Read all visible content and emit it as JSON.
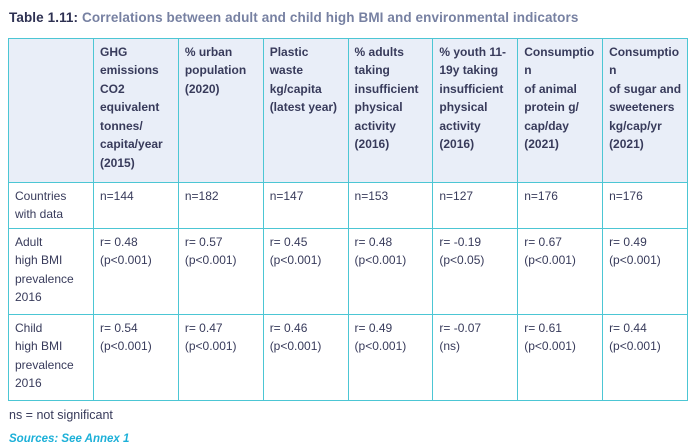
{
  "title": {
    "prefix": "Table 1.11:",
    "text": " Correlations between adult and child high BMI and environmental indicators"
  },
  "table": {
    "corner_label": "",
    "columns": [
      "GHG\nemissions\nCO2\nequivalent\ntonnes/\ncapita/year\n(2015)",
      "% urban\npopulation\n(2020)",
      "Plastic waste\nkg/capita\n(latest year)",
      "% adults\ntaking\ninsufficient\nphysical\nactivity\n(2016)",
      "% youth 11-\n19y taking\ninsufficient\nphysical\nactivity\n(2016)",
      "Consumption\nof animal\nprotein g/\ncap/day\n(2021)",
      "Consumption\nof sugar and\nsweeteners\nkg/cap/yr\n(2021)"
    ],
    "rows": [
      {
        "label": "Countries\nwith data",
        "cells": [
          "n=144",
          "n=182",
          "n=147",
          "n=153",
          "n=127",
          "n=176",
          "n=176"
        ]
      },
      {
        "label": "Adult\nhigh BMI\nprevalence\n2016",
        "cells": [
          "r= 0.48\n(p<0.001)",
          "r= 0.57\n(p<0.001)",
          "r= 0.45\n(p<0.001)",
          "r= 0.48\n(p<0.001)",
          "r= -0.19\n(p<0.05)",
          "r= 0.67\n(p<0.001)",
          "r= 0.49\n(p<0.001)"
        ]
      },
      {
        "label": "Child\nhigh BMI\nprevalence\n2016",
        "cells": [
          "r= 0.54\n(p<0.001)",
          "r= 0.47\n(p<0.001)",
          "r= 0.46\n(p<0.001)",
          "r= 0.49\n(p<0.001)",
          "r= -0.07\n(ns)",
          "r= 0.61\n(p<0.001)",
          "r= 0.44\n(p<0.001)"
        ]
      }
    ]
  },
  "footnote": "ns = not significant",
  "sources": "Sources: See Annex 1",
  "colors": {
    "border_cyan": "#4cc6d4",
    "header_bg": "#e9eef8",
    "body_text_navy": "#383b5b",
    "title_navy": "#2e3152",
    "title_slate": "#7781a2",
    "sources_cyan": "#1cb0d8"
  }
}
